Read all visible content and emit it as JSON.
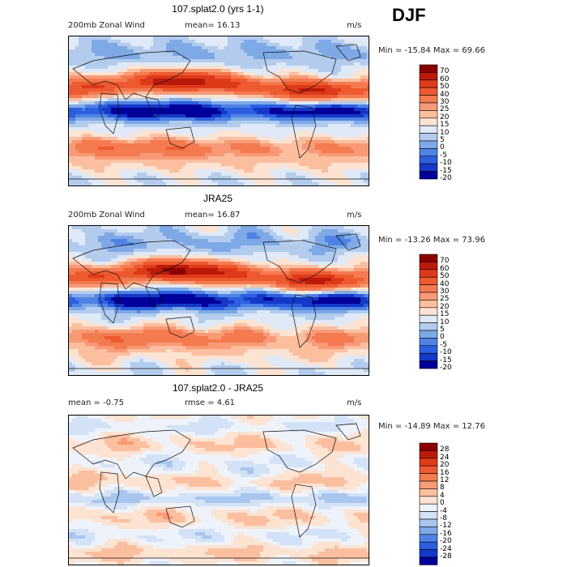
{
  "season": "DJF",
  "panels": [
    {
      "title": "107.splat2.0 (yrs 1-1)",
      "left_label": "200mb Zonal Wind",
      "mean_label": "mean=  16.13",
      "units": "m/s",
      "minmax": "Min = -15.84 Max =  69.66",
      "type": "field",
      "levels": [
        "70",
        "60",
        "50",
        "40",
        "30",
        "25",
        "20",
        "15",
        "10",
        "5",
        "0",
        "-5",
        "-10",
        "-15",
        "-20"
      ],
      "colors": [
        "#8b0000",
        "#bb1a0a",
        "#dd3a1a",
        "#ee5a30",
        "#f47a50",
        "#f99a76",
        "#fbbfa0",
        "#fde3d2",
        "#dfe9f7",
        "#b3ccee",
        "#7ea9e6",
        "#4f82e4",
        "#2c5fe0",
        "#1438c8",
        "#00009a"
      ]
    },
    {
      "title": "JRA25",
      "left_label": "200mb Zonal Wind",
      "mean_label": "mean=  16.87",
      "units": "m/s",
      "minmax": "Min = -13.26 Max =  73.96",
      "type": "field",
      "levels": [
        "70",
        "60",
        "50",
        "40",
        "30",
        "25",
        "20",
        "15",
        "10",
        "5",
        "0",
        "-5",
        "-10",
        "-15",
        "-20"
      ],
      "colors": [
        "#8b0000",
        "#bb1a0a",
        "#dd3a1a",
        "#ee5a30",
        "#f47a50",
        "#f99a76",
        "#fbbfa0",
        "#fde3d2",
        "#dfe9f7",
        "#b3ccee",
        "#7ea9e6",
        "#4f82e4",
        "#2c5fe0",
        "#1438c8",
        "#00009a"
      ]
    },
    {
      "title": "107.splat2.0 - JRA25",
      "left_label": "mean =  -0.75",
      "mean_label": "rmse =   4.61",
      "units": "m/s",
      "minmax": "Min = -14.89 Max =  12.76",
      "type": "diff",
      "levels": [
        "28",
        "24",
        "20",
        "16",
        "12",
        "8",
        "4",
        "0",
        "-4",
        "-8",
        "-12",
        "-16",
        "-20",
        "-24",
        "-28"
      ],
      "colors": [
        "#8b0000",
        "#bb1a0a",
        "#dd3a1a",
        "#ee5a30",
        "#f47a50",
        "#f99a76",
        "#fbbfa0",
        "#fde3d2",
        "#eef3fb",
        "#d3e2f6",
        "#a9c5ee",
        "#7ea9e6",
        "#4f82e4",
        "#2c5fe0",
        "#1438c8",
        "#00009a"
      ]
    }
  ]
}
